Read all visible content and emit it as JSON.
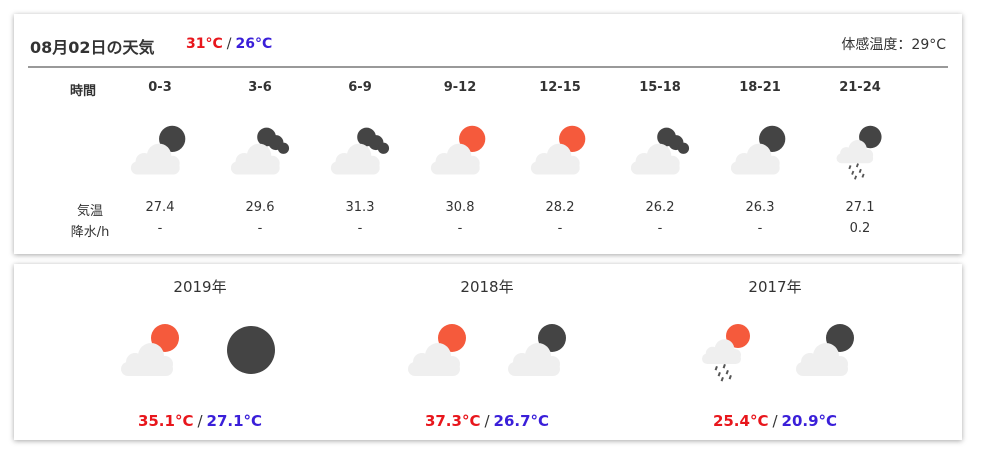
{
  "header": {
    "date": "08月02日の天気",
    "high": "31°C",
    "slash": "/",
    "low": "26°C",
    "feels_like": "体感温度：29°C"
  },
  "hourly": {
    "time_label": "時間",
    "temp_label": "気温",
    "rain_label": "降水/h",
    "slots": [
      {
        "time": "0-3",
        "icon": "cloud-moon-icon",
        "temp": "27.4",
        "rain": "-"
      },
      {
        "time": "3-6",
        "icon": "cloud-night-clouds-icon",
        "temp": "29.6",
        "rain": "-"
      },
      {
        "time": "6-9",
        "icon": "cloud-night-clouds-icon",
        "temp": "31.3",
        "rain": "-"
      },
      {
        "time": "9-12",
        "icon": "cloud-sun-icon",
        "temp": "30.8",
        "rain": "-"
      },
      {
        "time": "12-15",
        "icon": "cloud-sun-icon",
        "temp": "28.2",
        "rain": "-"
      },
      {
        "time": "15-18",
        "icon": "cloud-night-clouds-icon",
        "temp": "26.2",
        "rain": "-"
      },
      {
        "time": "18-21",
        "icon": "cloud-moon-icon",
        "temp": "26.3",
        "rain": "-"
      },
      {
        "time": "21-24",
        "icon": "rain-moon-icon",
        "temp": "27.1",
        "rain": "0.2"
      }
    ]
  },
  "history": [
    {
      "year": "2019年",
      "icons": [
        "cloud-sun-icon",
        "moon-icon"
      ],
      "high": "35.1°C",
      "slash": "/",
      "low": "27.1°C"
    },
    {
      "year": "2018年",
      "icons": [
        "cloud-sun-icon",
        "cloud-moon-icon"
      ],
      "high": "37.3°C",
      "slash": "/",
      "low": "26.7°C"
    },
    {
      "year": "2017年",
      "icons": [
        "rain-sun-icon",
        "cloud-moon-icon"
      ],
      "high": "25.4°C",
      "slash": "/",
      "low": "20.9°C"
    }
  ],
  "colors": {
    "high": "#e8161c",
    "low": "#3a1fd9",
    "sun": "#f55a3c",
    "moon": "#444444",
    "cloud": "#efefef"
  }
}
